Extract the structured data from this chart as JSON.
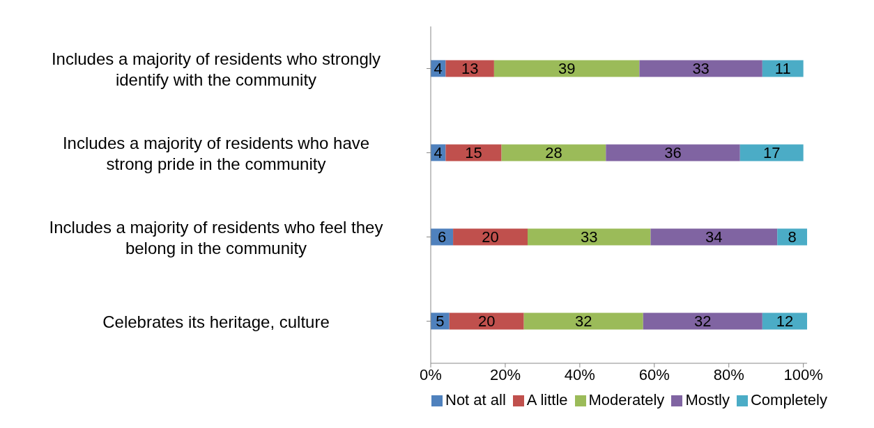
{
  "chart_data": {
    "type": "bar",
    "orientation": "horizontal",
    "stacked": true,
    "categories": [
      "Includes a majority of residents who strongly identify with the community",
      "Includes a majority of residents who have strong pride in the community",
      "Includes a majority of residents who feel they belong in the community",
      "Celebrates its heritage, culture"
    ],
    "series": [
      {
        "name": "Not at all",
        "color": "#4f81bd",
        "values": [
          4,
          4,
          6,
          5
        ]
      },
      {
        "name": "A little",
        "color": "#c0504d",
        "values": [
          13,
          15,
          20,
          20
        ]
      },
      {
        "name": "Moderately",
        "color": "#9bbb59",
        "values": [
          39,
          28,
          33,
          32
        ]
      },
      {
        "name": "Mostly",
        "color": "#8064a2",
        "values": [
          33,
          36,
          34,
          32
        ]
      },
      {
        "name": "Completely",
        "color": "#4bacc6",
        "values": [
          11,
          17,
          8,
          12
        ]
      }
    ],
    "xlim": [
      0,
      101
    ],
    "xticks": [
      {
        "value": 0,
        "label": "0%"
      },
      {
        "value": 20,
        "label": "20%"
      },
      {
        "value": 40,
        "label": "40%"
      },
      {
        "value": 60,
        "label": "60%"
      },
      {
        "value": 80,
        "label": "80%"
      },
      {
        "value": 100,
        "label": "100%"
      }
    ],
    "data_labels": true,
    "legend": "bottom",
    "grid": false
  }
}
